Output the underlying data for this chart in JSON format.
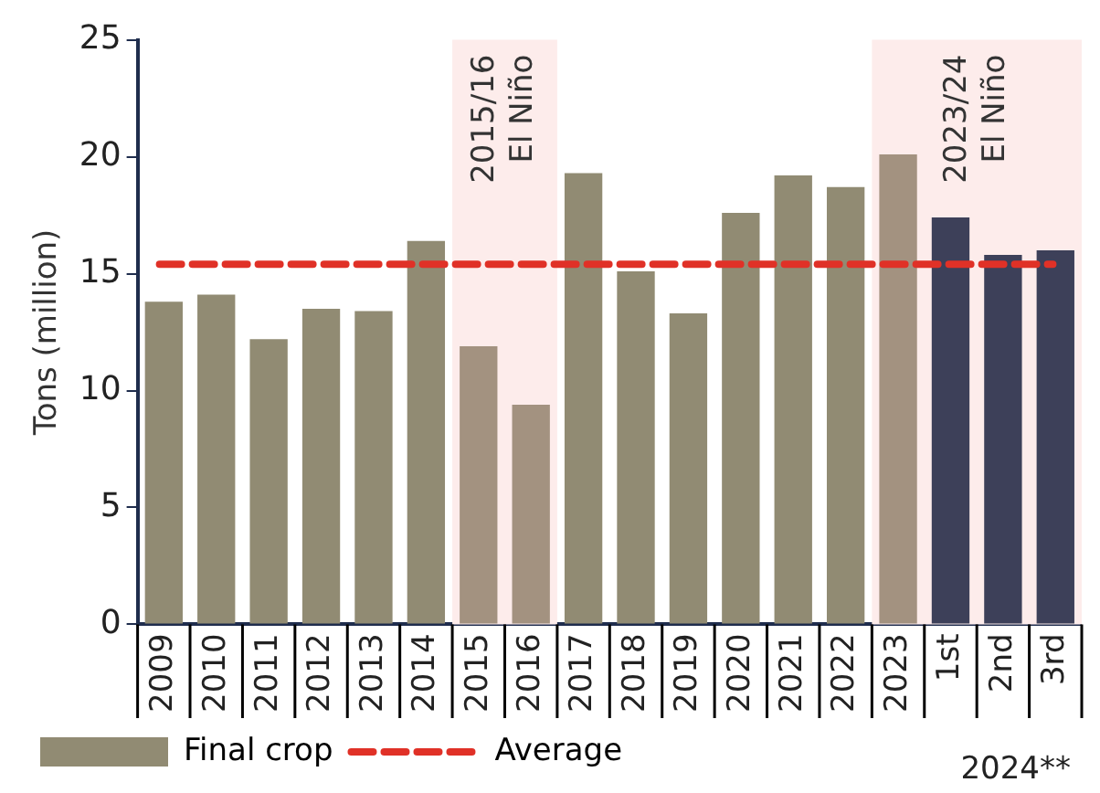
{
  "chart_data": {
    "type": "bar",
    "ylabel": "Tons (million)",
    "categories": [
      "2009",
      "2010",
      "2011",
      "2012",
      "2013",
      "2014",
      "2015",
      "2016",
      "2017",
      "2018",
      "2019",
      "2020",
      "2021",
      "2022",
      "2023",
      "1st",
      "2nd",
      "3rd"
    ],
    "series": [
      {
        "name": "Final crop",
        "color": "#918b73",
        "colors": [
          "#918b73",
          "#918b73",
          "#918b73",
          "#918b73",
          "#918b73",
          "#918b73",
          "#a39280",
          "#a39280",
          "#918b73",
          "#918b73",
          "#918b73",
          "#918b73",
          "#918b73",
          "#918b73",
          "#a39280",
          "#3d4059",
          "#3d4059",
          "#3d4059"
        ],
        "values": [
          13.8,
          14.1,
          12.2,
          13.5,
          13.4,
          16.4,
          11.9,
          9.4,
          19.3,
          15.1,
          13.3,
          17.6,
          19.2,
          18.7,
          20.1,
          17.4,
          15.8,
          16.0
        ]
      }
    ],
    "ylim": [
      0,
      25
    ],
    "yticks": [
      0,
      5,
      10,
      15,
      20,
      25
    ],
    "grid": false,
    "legend": "bottom",
    "ref_lines": [
      {
        "axis": "y",
        "value": 15.4,
        "label": "Average",
        "color": "#e03127",
        "line_style": "dashed"
      }
    ],
    "bands": [
      {
        "axis": "x",
        "from": "2015",
        "to": "2016",
        "label": "2015/16 El Niño",
        "color": "#fdeceb"
      },
      {
        "axis": "x",
        "from": "2023",
        "to": "3rd",
        "label": "2023/24 El Niño",
        "color": "#fdeceb"
      }
    ],
    "annotations": [
      "2024**"
    ]
  }
}
